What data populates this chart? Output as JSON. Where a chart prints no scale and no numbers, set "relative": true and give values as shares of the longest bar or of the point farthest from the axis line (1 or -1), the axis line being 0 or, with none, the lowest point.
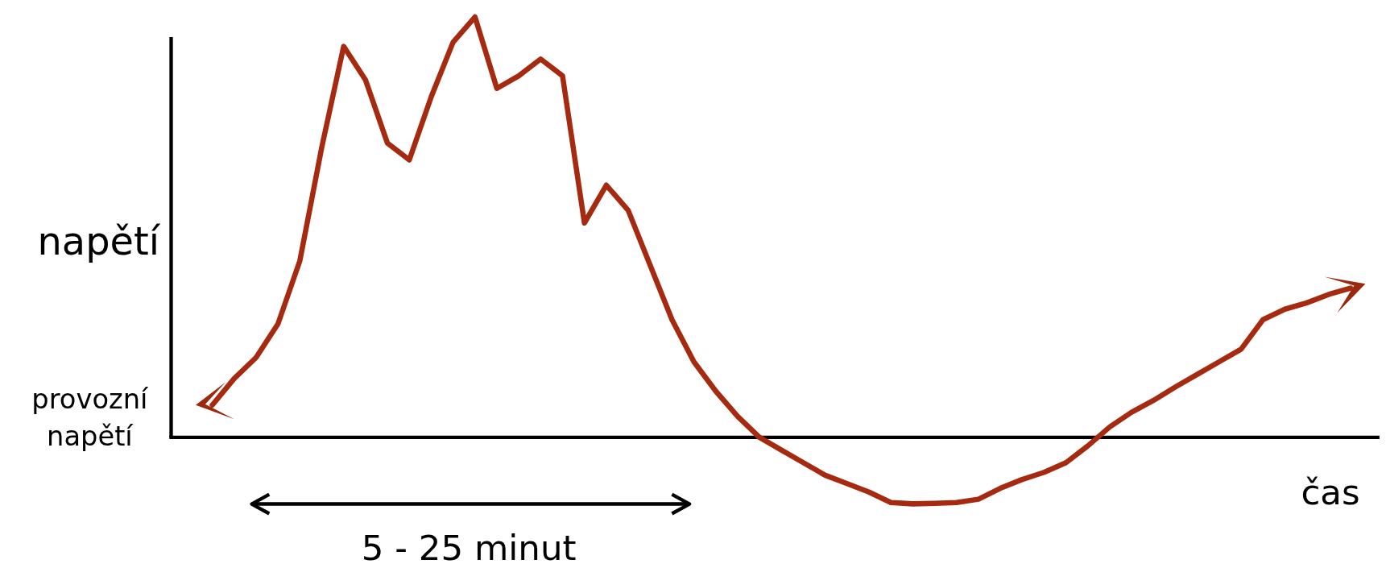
{
  "chart_data": {
    "type": "line",
    "relative": true,
    "ylabel": "napětí",
    "xlabel": "čas",
    "categories": [
      null,
      null,
      null,
      null,
      null,
      null,
      null,
      null,
      null,
      null,
      null,
      null,
      null,
      null,
      null,
      null,
      null,
      null,
      null,
      null,
      null,
      null,
      null,
      null,
      null,
      null,
      null,
      null,
      null,
      null,
      null,
      null,
      null,
      null,
      null,
      null,
      null,
      null,
      null,
      null,
      null,
      null,
      null,
      null,
      null,
      null,
      null,
      null,
      null,
      null,
      null,
      null,
      null
    ],
    "series": [
      {
        "color": "#a52a0f",
        "values": [
          0.077,
          0.14,
          0.19,
          0.27,
          0.42,
          0.69,
          0.93,
          0.85,
          0.7,
          0.66,
          0.81,
          0.94,
          1,
          0.83,
          0.86,
          0.9,
          0.86,
          0.51,
          0.6,
          0.54,
          0.41,
          0.28,
          0.18,
          0.11,
          0.05,
          0.0,
          -0.03,
          -0.06,
          -0.09,
          -0.11,
          -0.13,
          -0.155,
          -0.158,
          -0.157,
          -0.155,
          -0.147,
          -0.121,
          -0.1,
          -0.083,
          -0.06,
          -0.02,
          0.025,
          0.06,
          0.088,
          0.12,
          0.15,
          0.18,
          0.21,
          0.28,
          0.305,
          0.32,
          0.34,
          0.355
        ]
      }
    ],
    "annotations": [
      "provozní napětí",
      "5 - 25 minut"
    ],
    "line_style": "solid",
    "marker": "none"
  }
}
